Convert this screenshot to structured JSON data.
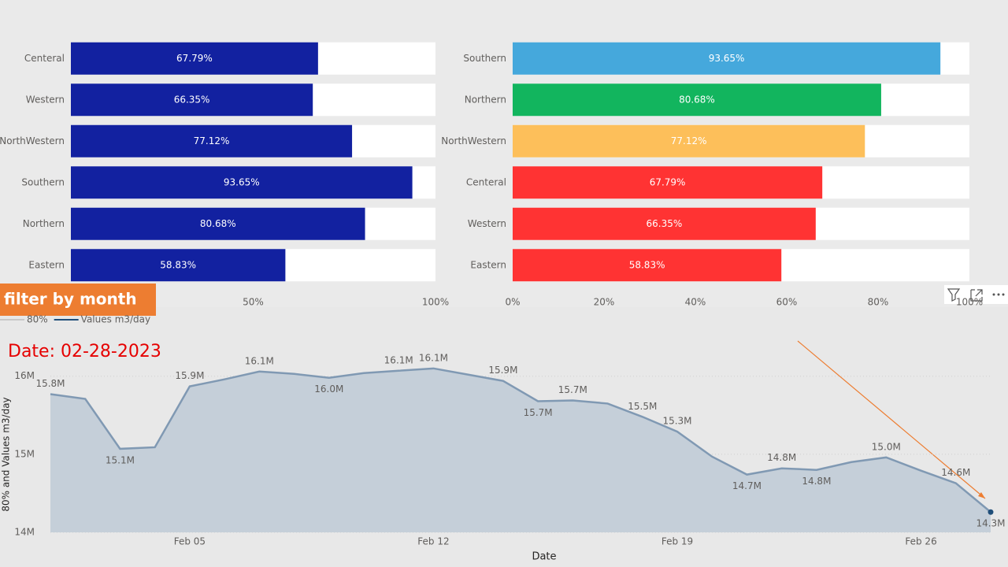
{
  "filter_button": "filter by month",
  "date_label": "Date: 02-28-2023",
  "chart_data": [
    {
      "type": "hbar",
      "categories": [
        "Centeral",
        "Western",
        "NorthWestern",
        "Southern",
        "Northern",
        "Eastern"
      ],
      "values": [
        67.79,
        66.35,
        77.12,
        93.65,
        80.68,
        58.83
      ],
      "value_labels": [
        "67.79%",
        "66.35%",
        "77.12%",
        "93.65%",
        "80.68%",
        "58.83%"
      ],
      "color": "#1221a0",
      "xlim": [
        0,
        100
      ],
      "xticks": [
        {
          "value": 50,
          "label": "50%"
        },
        {
          "value": 100,
          "label": "100%"
        }
      ]
    },
    {
      "type": "hbar",
      "categories": [
        "Southern",
        "Northern",
        "NorthWestern",
        "Centeral",
        "Western",
        "Eastern"
      ],
      "values": [
        93.65,
        80.68,
        77.12,
        67.79,
        66.35,
        58.83
      ],
      "value_labels": [
        "93.65%",
        "80.68%",
        "77.12%",
        "67.79%",
        "66.35%",
        "58.83%"
      ],
      "colors": [
        "#45a8dc",
        "#12b55e",
        "#fdbf5a",
        "#ff3333",
        "#ff3333",
        "#ff3333"
      ],
      "xlim": [
        0,
        100
      ],
      "xticks": [
        {
          "value": 0,
          "label": "0%"
        },
        {
          "value": 20,
          "label": "20%"
        },
        {
          "value": 40,
          "label": "40%"
        },
        {
          "value": 60,
          "label": "60%"
        },
        {
          "value": 80,
          "label": "80%"
        },
        {
          "value": 100,
          "label": "100%"
        }
      ]
    },
    {
      "type": "area",
      "x_label": "Date",
      "y_label": "80% and Values m3/day",
      "categories": [
        null,
        null,
        null,
        null,
        "Feb 05",
        null,
        null,
        null,
        null,
        null,
        null,
        "Feb 12",
        null,
        null,
        null,
        null,
        null,
        null,
        "Feb 19",
        null,
        null,
        null,
        null,
        null,
        null,
        "Feb 26",
        null,
        null
      ],
      "series": [
        {
          "name": "80%",
          "color": "#c8c8c8"
        },
        {
          "name": "Values m3/day",
          "color": "#1f4e79",
          "values": [
            15770000,
            15710000,
            15070000,
            15090000,
            15870000,
            15960000,
            16060000,
            16030000,
            15980000,
            16040000,
            16070000,
            16100000,
            16020000,
            15940000,
            15680000,
            15690000,
            15650000,
            15480000,
            15290000,
            14970000,
            14740000,
            14820000,
            14800000,
            14900000,
            14960000,
            14790000,
            14630000,
            14260000
          ],
          "value_labels": [
            "15.8M",
            null,
            "15.1M",
            null,
            "15.9M",
            null,
            "16.1M",
            null,
            "16.0M",
            null,
            "16.1M",
            "16.1M",
            null,
            "15.9M",
            "15.7M",
            "15.7M",
            null,
            "15.5M",
            "15.3M",
            null,
            "14.7M",
            "14.8M",
            "14.8M",
            null,
            "15.0M",
            null,
            "14.6M",
            "14.3M"
          ]
        }
      ],
      "area_color": "#c5cfd9",
      "line_color": "#8099b3",
      "ylim": [
        14000000,
        16300000
      ],
      "yticks": [
        {
          "value": 14000000,
          "label": "14M"
        },
        {
          "value": 15000000,
          "label": "15M"
        },
        {
          "value": 16000000,
          "label": "16M"
        }
      ],
      "grid": true
    }
  ]
}
